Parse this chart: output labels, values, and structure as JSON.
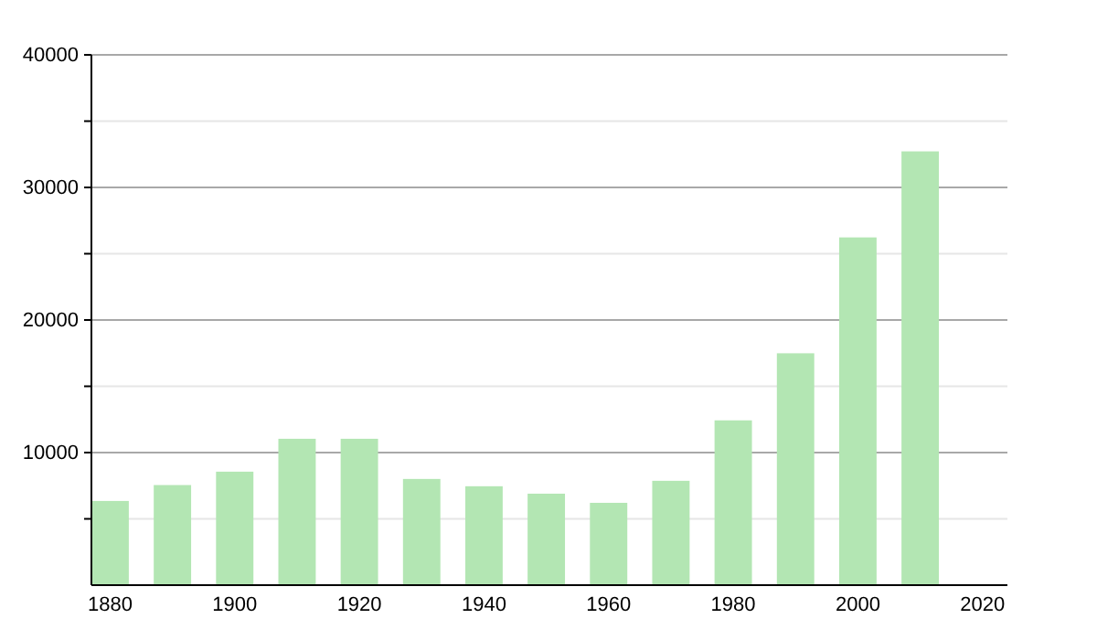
{
  "chart_data": {
    "type": "bar",
    "x": [
      1880,
      1890,
      1900,
      1910,
      1920,
      1930,
      1940,
      1950,
      1960,
      1970,
      1980,
      1990,
      2000,
      2010
    ],
    "values": [
      6350,
      7550,
      8560,
      11040,
      11040,
      8010,
      7460,
      6900,
      6210,
      7870,
      12430,
      17490,
      26230,
      32720
    ],
    "color": "#b3e6b3",
    "xlim": [
      1877,
      2024
    ],
    "xticks": [
      1880,
      1900,
      1920,
      1940,
      1960,
      1980,
      2000,
      2020
    ],
    "ylim": [
      0,
      40000
    ],
    "yticks": [
      {
        "value": 5000,
        "label": null
      },
      10000,
      {
        "value": 15000,
        "label": null
      },
      20000,
      {
        "value": 25000,
        "label": null
      },
      30000,
      {
        "value": 35000,
        "label": null
      },
      40000
    ],
    "grid": true
  }
}
